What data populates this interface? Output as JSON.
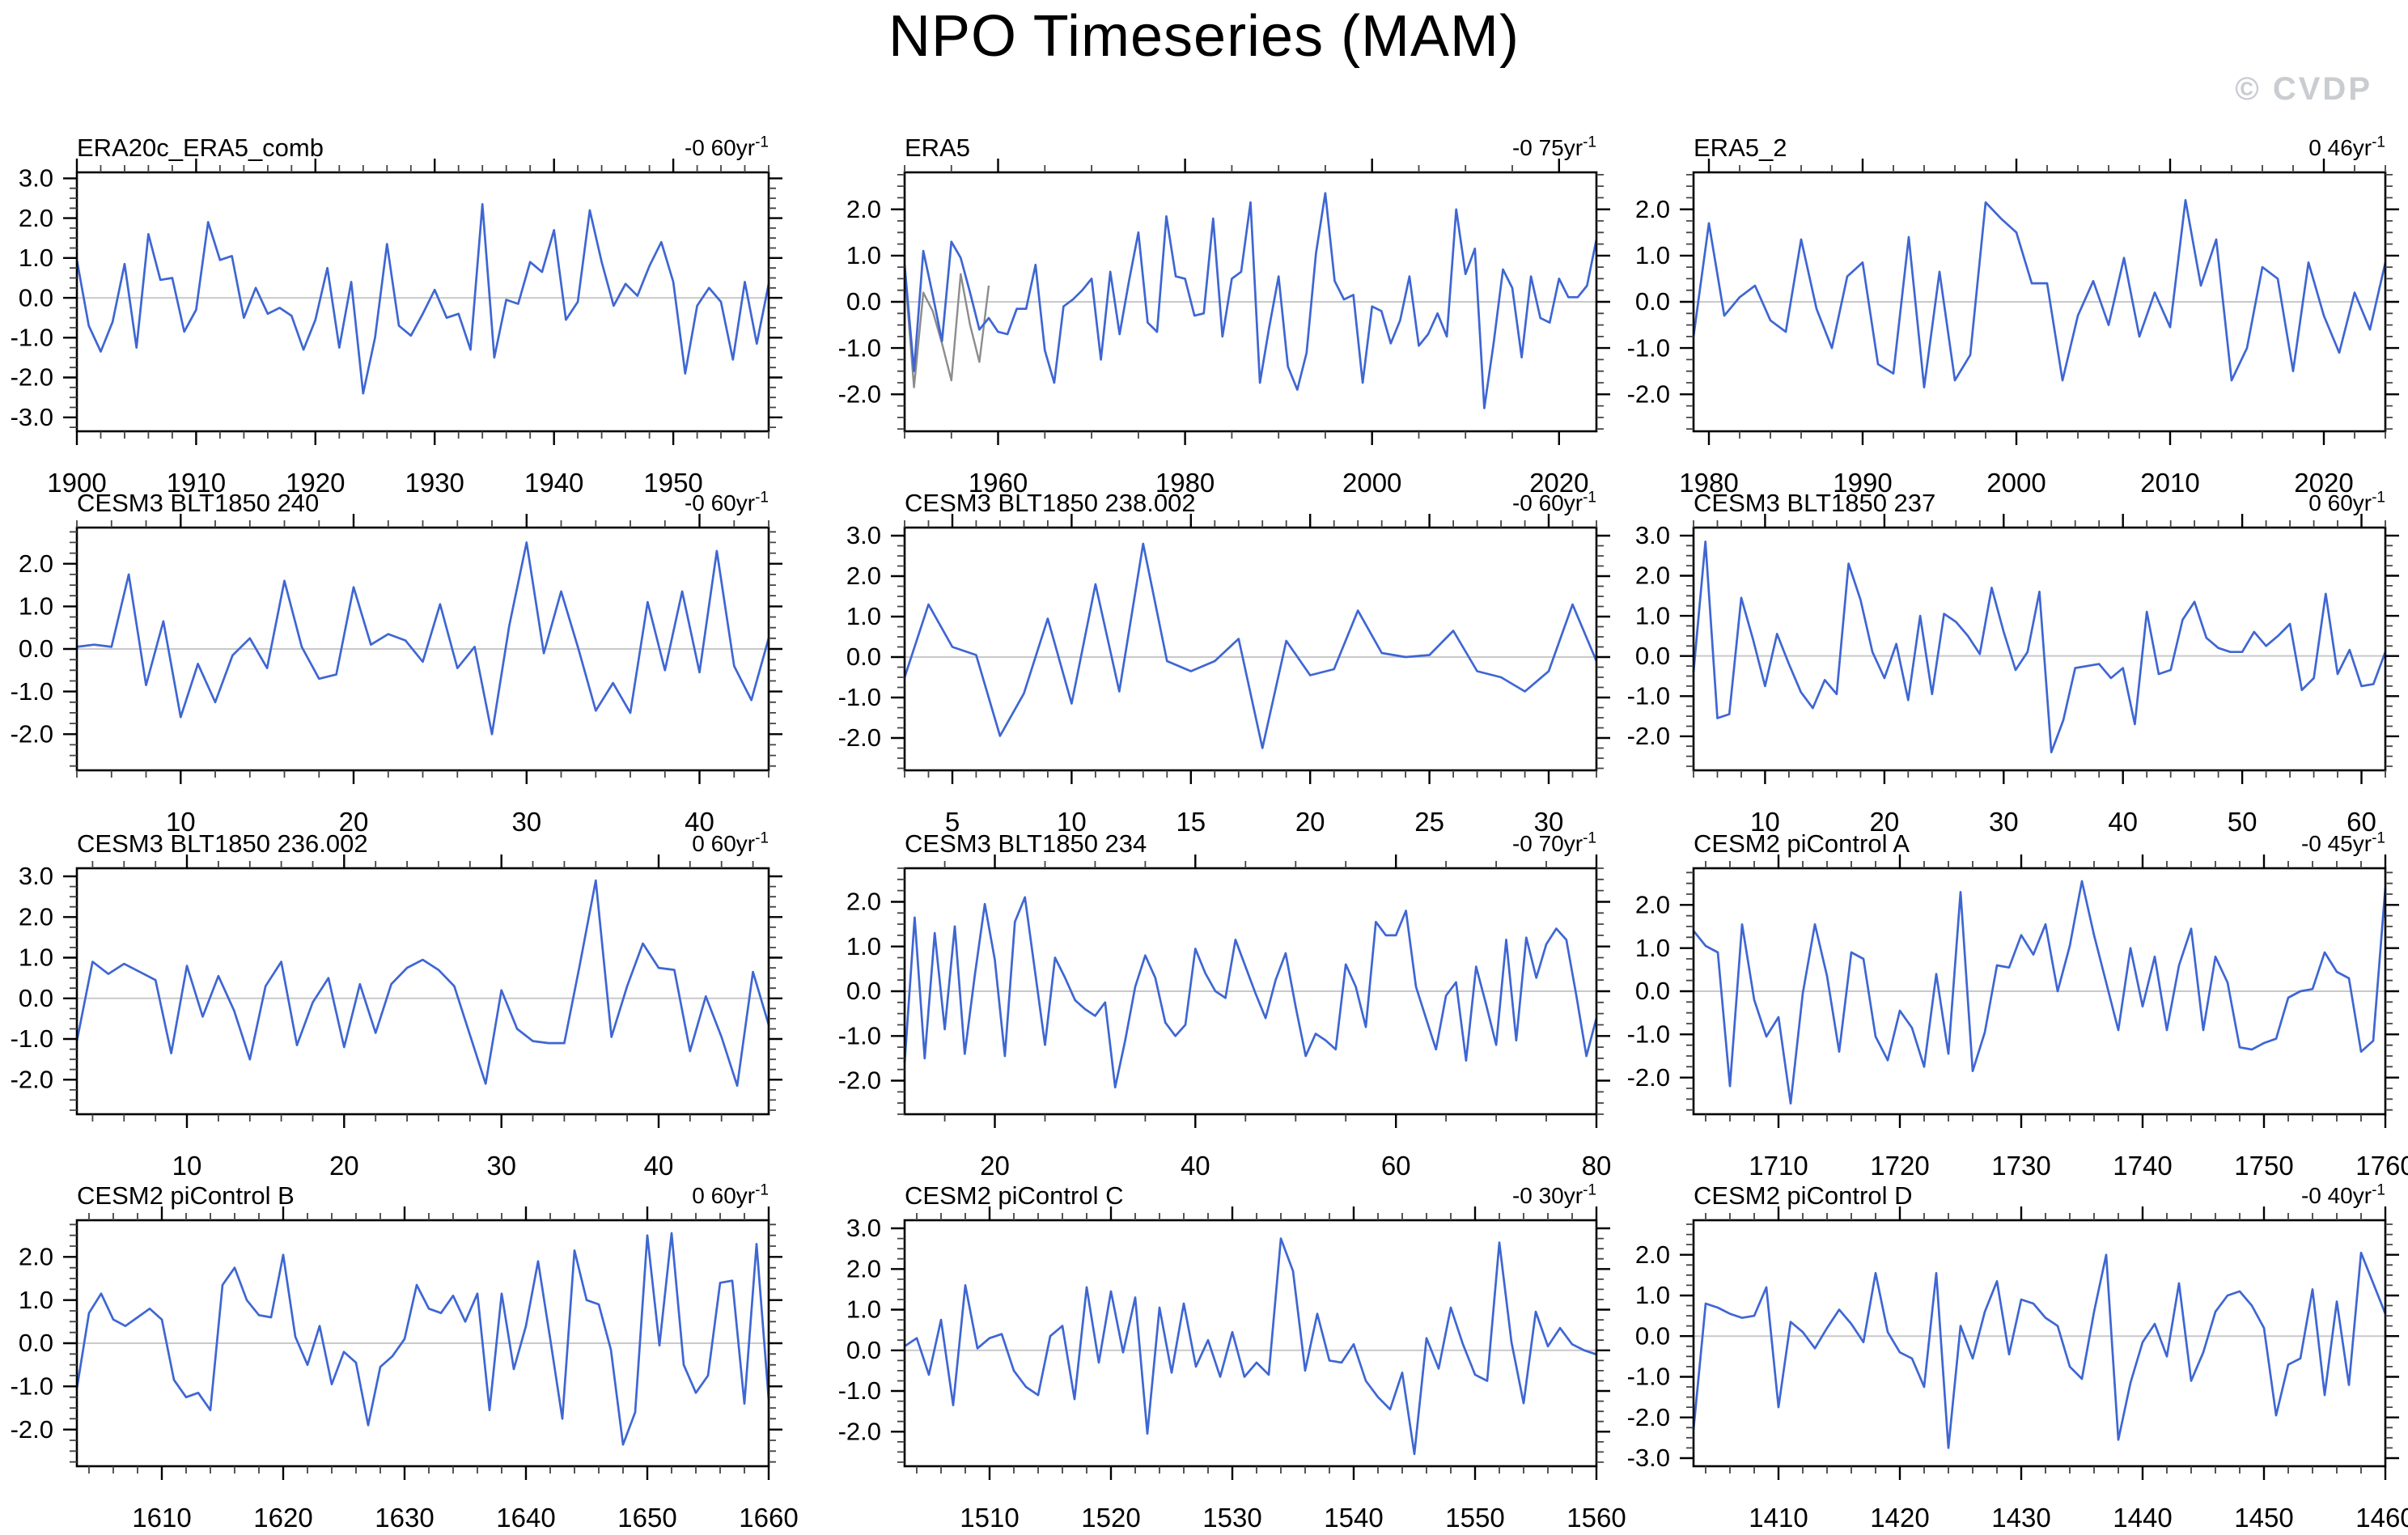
{
  "page_title": "NPO Timeseries (MAM)",
  "watermark": "© CVDP",
  "colors": {
    "series": "#3e66d3",
    "reference_series": "#8c8c8c",
    "zero_line": "#c9c9c9",
    "axis": "#000000",
    "watermark": "#c9ccd1"
  },
  "chart_data": [
    {
      "type": "line",
      "title": "ERA20c_ERA5_comb",
      "trend": "-0 60yr",
      "trend_sup": "-1",
      "x_start": 1900,
      "x_major": 10,
      "x_minor": 2,
      "y_ticks": [
        -3,
        -2,
        -1,
        0,
        1,
        2,
        3
      ],
      "y_min": -3.35,
      "y_max": 3.15,
      "grid": false,
      "values": [
        0.95,
        -0.7,
        -1.35,
        -0.6,
        0.85,
        -1.25,
        1.6,
        0.45,
        0.5,
        -0.85,
        -0.3,
        1.9,
        0.95,
        1.05,
        -0.5,
        0.25,
        -0.4,
        -0.25,
        -0.45,
        -1.3,
        -0.55,
        0.75,
        -1.25,
        0.4,
        -2.4,
        -1.0,
        1.35,
        -0.7,
        -0.95,
        -0.4,
        0.2,
        -0.5,
        -0.4,
        -1.3,
        2.35,
        -1.5,
        -0.05,
        -0.15,
        0.9,
        0.65,
        1.7,
        -0.55,
        -0.1,
        2.2,
        0.9,
        -0.2,
        0.35,
        0.05,
        0.8,
        1.4,
        0.4,
        -1.9,
        -0.2,
        0.25,
        -0.1,
        -1.55,
        0.4,
        -1.15,
        0.35
      ]
    },
    {
      "type": "line",
      "title": "ERA5",
      "trend": "-0 75yr",
      "trend_sup": "-1",
      "x_start": 1950,
      "x_major": 20,
      "x_minor": 5,
      "y_ticks": [
        -2,
        -1,
        0,
        1,
        2
      ],
      "y_min": -2.8,
      "y_max": 2.8,
      "grid": false,
      "values": [
        0.8,
        -1.5,
        1.1,
        0.15,
        -0.85,
        1.3,
        0.95,
        0.2,
        -0.6,
        -0.35,
        -0.65,
        -0.7,
        -0.15,
        -0.15,
        0.8,
        -1.05,
        -1.75,
        -0.1,
        0.05,
        0.25,
        0.5,
        -1.25,
        0.65,
        -0.7,
        0.45,
        1.5,
        -0.45,
        -0.65,
        1.85,
        0.55,
        0.5,
        -0.3,
        -0.25,
        1.8,
        -0.75,
        0.5,
        0.65,
        2.15,
        -1.75,
        -0.55,
        0.55,
        -1.4,
        -1.9,
        -1.1,
        1.05,
        2.35,
        0.45,
        0.05,
        0.15,
        -1.75,
        -0.1,
        -0.2,
        -0.9,
        -0.4,
        0.55,
        -0.95,
        -0.7,
        -0.25,
        -0.75,
        2.0,
        0.6,
        1.15,
        -2.3,
        -0.9,
        0.7,
        0.3,
        -1.2,
        0.55,
        -0.35,
        -0.45,
        0.5,
        0.1,
        0.1,
        0.35,
        1.35
      ],
      "gray_x_start": 1950,
      "gray_values": [
        0.7,
        -1.85,
        0.2,
        -0.2,
        -0.9,
        -1.7,
        0.6,
        -0.5,
        -1.3,
        0.35
      ]
    },
    {
      "type": "line",
      "title": "ERA5_2",
      "trend": "0 46yr",
      "trend_sup": "-1",
      "x_start": 1979,
      "x_major": 10,
      "x_minor": 2,
      "y_ticks": [
        -2,
        -1,
        0,
        1,
        2
      ],
      "y_min": -2.8,
      "y_max": 2.8,
      "grid": false,
      "values": [
        -0.75,
        1.7,
        -0.3,
        0.1,
        0.35,
        -0.4,
        -0.65,
        1.35,
        -0.15,
        -1.0,
        0.55,
        0.85,
        -1.35,
        -1.55,
        1.4,
        -1.85,
        0.65,
        -1.7,
        -1.15,
        2.15,
        1.8,
        1.5,
        0.4,
        0.4,
        -1.7,
        -0.3,
        0.45,
        -0.5,
        0.95,
        -0.75,
        0.2,
        -0.55,
        2.2,
        0.35,
        1.35,
        -1.7,
        -1.0,
        0.75,
        0.5,
        -1.5,
        0.85,
        -0.3,
        -1.1,
        0.2,
        -0.6,
        0.85
      ]
    },
    {
      "type": "line",
      "title": "CESM3 BLT1850 240",
      "trend": "-0 60yr",
      "trend_sup": "-1",
      "x_start": 4,
      "x_major": 10,
      "x_minor": 2,
      "y_ticks": [
        -2,
        -1,
        0,
        1,
        2
      ],
      "y_min": -2.85,
      "y_max": 2.85,
      "grid": false,
      "values": [
        0.05,
        0.1,
        0.05,
        1.75,
        -0.85,
        0.65,
        -1.6,
        -0.35,
        -1.25,
        -0.15,
        0.25,
        -0.45,
        1.6,
        0.05,
        -0.7,
        -0.6,
        1.45,
        0.1,
        0.35,
        0.2,
        -0.3,
        1.05,
        -0.45,
        0.05,
        -2.0,
        0.55,
        2.5,
        -0.1,
        1.35,
        0.0,
        -1.45,
        -0.8,
        -1.5,
        1.1,
        -0.5,
        1.35,
        -0.55,
        2.3,
        -0.4,
        -1.2,
        0.25
      ]
    },
    {
      "type": "line",
      "title": "CESM3 BLT1850 238.002",
      "trend": "-0 60yr",
      "trend_sup": "-1",
      "x_start": 3,
      "x_major": 5,
      "x_minor": 1,
      "y_ticks": [
        -2,
        -1,
        0,
        1,
        2,
        3
      ],
      "y_min": -2.8,
      "y_max": 3.2,
      "grid": false,
      "values": [
        -0.5,
        1.3,
        0.25,
        0.05,
        -1.95,
        -0.9,
        0.95,
        -1.15,
        1.8,
        -0.85,
        2.8,
        -0.1,
        -0.35,
        -0.1,
        0.45,
        -2.25,
        0.4,
        -0.45,
        -0.3,
        1.15,
        0.1,
        0.0,
        0.05,
        0.65,
        -0.35,
        -0.5,
        -0.85,
        -0.35,
        1.3,
        -0.1
      ]
    },
    {
      "type": "line",
      "title": "CESM3 BLT1850 237",
      "trend": "0 60yr",
      "trend_sup": "-1",
      "x_start": 4,
      "x_major": 10,
      "x_minor": 2,
      "y_ticks": [
        -2,
        -1,
        0,
        1,
        2,
        3
      ],
      "y_min": -2.85,
      "y_max": 3.2,
      "grid": false,
      "values": [
        -0.4,
        2.85,
        -1.55,
        -1.45,
        1.45,
        0.4,
        -0.75,
        0.55,
        -0.2,
        -0.9,
        -1.3,
        -0.6,
        -0.95,
        2.3,
        1.4,
        0.1,
        -0.55,
        0.3,
        -1.1,
        1.0,
        -0.95,
        1.05,
        0.85,
        0.5,
        0.05,
        1.7,
        0.6,
        -0.35,
        0.1,
        1.6,
        -2.4,
        -1.6,
        -0.3,
        -0.25,
        -0.2,
        -0.55,
        -0.3,
        -1.7,
        1.1,
        -0.45,
        -0.35,
        0.9,
        1.35,
        0.45,
        0.2,
        0.1,
        0.1,
        0.6,
        0.25,
        0.5,
        0.8,
        -0.85,
        -0.55,
        1.55,
        -0.45,
        0.15,
        -0.75,
        -0.7,
        0.1
      ]
    },
    {
      "type": "line",
      "title": "CESM3 BLT1850 236.002",
      "trend": "0 60yr",
      "trend_sup": "-1",
      "x_start": 3,
      "x_major": 10,
      "x_minor": 2,
      "y_ticks": [
        -2,
        -1,
        0,
        1,
        2,
        3
      ],
      "y_min": -2.85,
      "y_max": 3.2,
      "grid": false,
      "values": [
        -1.05,
        0.9,
        0.6,
        0.85,
        0.65,
        0.45,
        -1.35,
        0.8,
        -0.45,
        0.55,
        -0.3,
        -1.5,
        0.3,
        0.9,
        -1.15,
        -0.1,
        0.5,
        -1.2,
        0.35,
        -0.85,
        0.35,
        0.75,
        0.95,
        0.7,
        0.3,
        -0.9,
        -2.1,
        0.2,
        -0.75,
        -1.05,
        -1.1,
        -1.1,
        0.85,
        2.9,
        -0.95,
        0.3,
        1.35,
        0.75,
        0.7,
        -1.3,
        0.05,
        -0.95,
        -2.15,
        0.65,
        -0.65
      ]
    },
    {
      "type": "line",
      "title": "CESM3 BLT1850 234",
      "trend": "-0 70yr",
      "trend_sup": "-1",
      "x_start": 11,
      "x_major": 20,
      "x_minor": 5,
      "y_ticks": [
        -2,
        -1,
        0,
        1,
        2
      ],
      "y_min": -2.75,
      "y_max": 2.75,
      "grid": false,
      "values": [
        -1.6,
        1.65,
        -1.5,
        1.3,
        -0.85,
        1.45,
        -1.4,
        0.35,
        1.95,
        0.7,
        -1.45,
        1.55,
        2.1,
        0.45,
        -1.2,
        0.75,
        0.3,
        -0.2,
        -0.4,
        -0.55,
        -0.25,
        -2.15,
        -1.1,
        0.1,
        0.8,
        0.3,
        -0.7,
        -1.0,
        -0.75,
        0.95,
        0.4,
        0.0,
        -0.15,
        1.15,
        0.55,
        -0.05,
        -0.6,
        0.25,
        0.85,
        -0.35,
        -1.45,
        -0.95,
        -1.1,
        -1.3,
        0.6,
        0.1,
        -0.8,
        1.55,
        1.25,
        1.25,
        1.8,
        0.1,
        -0.6,
        -1.3,
        -0.1,
        0.2,
        -1.55,
        0.55,
        -0.3,
        -1.2,
        1.15,
        -1.1,
        1.2,
        0.3,
        1.05,
        1.4,
        1.15,
        -0.1,
        -1.45,
        -0.6
      ]
    },
    {
      "type": "line",
      "title": "CESM2 piControl A",
      "trend": "-0 45yr",
      "trend_sup": "-1",
      "x_start": 1703,
      "x_major": 10,
      "x_minor": 2,
      "y_ticks": [
        -2,
        -1,
        0,
        1,
        2
      ],
      "y_min": -2.85,
      "y_max": 2.85,
      "grid": false,
      "values": [
        1.4,
        1.05,
        0.9,
        -2.2,
        1.55,
        -0.2,
        -1.05,
        -0.6,
        -2.6,
        -0.05,
        1.55,
        0.35,
        -1.4,
        0.9,
        0.75,
        -1.05,
        -1.6,
        -0.45,
        -0.85,
        -1.75,
        0.4,
        -1.45,
        2.3,
        -1.85,
        -0.95,
        0.6,
        0.55,
        1.3,
        0.85,
        1.55,
        0.0,
        1.05,
        2.55,
        1.3,
        0.2,
        -0.9,
        1.0,
        -0.35,
        0.8,
        -0.9,
        0.6,
        1.45,
        -0.9,
        0.8,
        0.2,
        -1.3,
        -1.35,
        -1.2,
        -1.1,
        -0.15,
        0.0,
        0.05,
        0.9,
        0.45,
        0.3,
        -1.4,
        -1.15,
        2.4
      ]
    },
    {
      "type": "line",
      "title": "CESM2 piControl B",
      "trend": "0 60yr",
      "trend_sup": "-1",
      "x_start": 1603,
      "x_major": 10,
      "x_minor": 2,
      "y_ticks": [
        -2,
        -1,
        0,
        1,
        2
      ],
      "y_min": -2.85,
      "y_max": 2.85,
      "grid": false,
      "values": [
        -1.05,
        0.7,
        1.15,
        0.55,
        0.4,
        0.6,
        0.8,
        0.55,
        -0.85,
        -1.25,
        -1.15,
        -1.55,
        1.35,
        1.75,
        1.0,
        0.65,
        0.6,
        2.05,
        0.15,
        -0.5,
        0.4,
        -0.95,
        -0.2,
        -0.45,
        -1.9,
        -0.55,
        -0.3,
        0.1,
        1.35,
        0.8,
        0.7,
        1.1,
        0.5,
        1.15,
        -1.55,
        1.15,
        -0.6,
        0.4,
        1.9,
        0.1,
        -1.75,
        2.15,
        1.0,
        0.9,
        -0.15,
        -2.35,
        -1.6,
        2.5,
        -0.05,
        2.55,
        -0.5,
        -1.15,
        -0.75,
        1.4,
        1.45,
        -1.4,
        2.3,
        -1.3
      ]
    },
    {
      "type": "line",
      "title": "CESM2 piControl C",
      "trend": "-0 30yr",
      "trend_sup": "-1",
      "x_start": 1503,
      "x_major": 10,
      "x_minor": 2,
      "y_ticks": [
        -2,
        -1,
        0,
        1,
        2,
        3
      ],
      "y_min": -2.85,
      "y_max": 3.2,
      "grid": false,
      "values": [
        0.1,
        0.3,
        -0.6,
        0.75,
        -1.35,
        1.6,
        0.05,
        0.3,
        0.4,
        -0.5,
        -0.9,
        -1.1,
        0.35,
        0.6,
        -1.2,
        1.55,
        -0.3,
        1.45,
        -0.05,
        1.3,
        -2.05,
        1.05,
        -0.55,
        1.15,
        -0.4,
        0.25,
        -0.65,
        0.45,
        -0.65,
        -0.3,
        -0.6,
        2.75,
        1.95,
        -0.5,
        0.9,
        -0.25,
        -0.3,
        0.15,
        -0.75,
        -1.15,
        -1.45,
        -0.55,
        -2.55,
        0.3,
        -0.45,
        1.05,
        0.15,
        -0.6,
        -0.75,
        2.65,
        0.2,
        -1.3,
        0.95,
        0.1,
        0.55,
        0.15,
        0.0,
        -0.1
      ]
    },
    {
      "type": "line",
      "title": "CESM2 piControl D",
      "trend": "-0 40yr",
      "trend_sup": "-1",
      "x_start": 1403,
      "x_major": 10,
      "x_minor": 2,
      "y_ticks": [
        -3,
        -2,
        -1,
        0,
        1,
        2
      ],
      "y_min": -3.2,
      "y_max": 2.85,
      "grid": false,
      "values": [
        -2.3,
        0.8,
        0.7,
        0.55,
        0.45,
        0.5,
        1.2,
        -1.75,
        0.35,
        0.1,
        -0.3,
        0.2,
        0.65,
        0.3,
        -0.15,
        1.55,
        0.1,
        -0.4,
        -0.55,
        -1.25,
        1.55,
        -2.75,
        0.25,
        -0.55,
        0.6,
        1.35,
        -0.45,
        0.9,
        0.8,
        0.45,
        0.25,
        -0.75,
        -1.05,
        0.6,
        2.0,
        -2.55,
        -1.15,
        -0.15,
        0.3,
        -0.5,
        1.3,
        -1.1,
        -0.4,
        0.6,
        1.0,
        1.1,
        0.75,
        0.2,
        -1.95,
        -0.7,
        -0.55,
        1.15,
        -1.45,
        0.85,
        -1.2,
        2.05,
        1.3,
        0.55
      ]
    }
  ]
}
